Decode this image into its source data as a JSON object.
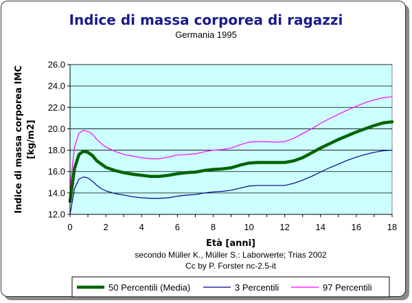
{
  "chart_data": {
    "type": "line",
    "title": "Indice di massa corporea di ragazzi",
    "subtitle": "Germania 1995",
    "xlabel": "Età [anni]",
    "ylabel_line1": "Indice di massa corporea IMC",
    "ylabel_line2": "[kg/m2]",
    "xlim": [
      0,
      18
    ],
    "ylim": [
      12.0,
      26.0
    ],
    "x_ticks": [
      0,
      2,
      4,
      6,
      8,
      10,
      12,
      14,
      16,
      18
    ],
    "x_tick_labels": [
      "0",
      "2",
      "4",
      "6",
      "8",
      "10",
      "12",
      "14",
      "16",
      "18"
    ],
    "y_ticks": [
      12,
      14,
      16,
      18,
      20,
      22,
      24,
      26
    ],
    "y_tick_labels": [
      "12.0",
      "14.0",
      "16.0",
      "18.0",
      "20.0",
      "22.0",
      "24.0",
      "26.0"
    ],
    "grid": "horizontal",
    "plot_background": "#ccffff",
    "legend_position": "bottom",
    "notes": [
      "secondo Müller K., Müller S.: Laborwerte; Trias 2002",
      "Cc by P. Forster nc-2.5-it"
    ],
    "series": [
      {
        "name": "50 Percentili (Media)",
        "color": "#006400",
        "x": [
          0,
          0.25,
          0.5,
          0.75,
          1,
          1.25,
          1.5,
          1.75,
          2,
          2.5,
          3,
          3.5,
          4,
          4.5,
          5,
          5.5,
          6,
          6.5,
          7,
          7.5,
          8,
          8.5,
          9,
          9.5,
          10,
          10.5,
          11,
          11.5,
          12,
          12.5,
          13,
          13.5,
          14,
          14.5,
          15,
          15.5,
          16,
          16.5,
          17,
          17.5,
          18
        ],
        "values": [
          13.2,
          16.3,
          17.6,
          17.9,
          17.8,
          17.5,
          17.0,
          16.7,
          16.4,
          16.1,
          15.9,
          15.75,
          15.65,
          15.55,
          15.55,
          15.65,
          15.8,
          15.9,
          15.95,
          16.1,
          16.2,
          16.25,
          16.35,
          16.6,
          16.8,
          16.85,
          16.85,
          16.85,
          16.85,
          17.0,
          17.3,
          17.75,
          18.2,
          18.6,
          19.0,
          19.35,
          19.7,
          20.0,
          20.3,
          20.55,
          20.65
        ]
      },
      {
        "name": "3 Percentili",
        "color": "#00008b",
        "x": [
          0,
          0.25,
          0.5,
          0.75,
          1,
          1.25,
          1.5,
          1.75,
          2,
          2.5,
          3,
          3.5,
          4,
          4.5,
          5,
          5.5,
          6,
          6.5,
          7,
          7.5,
          8,
          8.5,
          9,
          9.5,
          10,
          10.5,
          11,
          11.5,
          12,
          12.5,
          13,
          13.5,
          14,
          14.5,
          15,
          15.5,
          16,
          16.5,
          17,
          17.5,
          18
        ],
        "values": [
          12.0,
          14.4,
          15.3,
          15.5,
          15.4,
          15.1,
          14.7,
          14.4,
          14.2,
          13.95,
          13.8,
          13.65,
          13.55,
          13.5,
          13.5,
          13.55,
          13.7,
          13.8,
          13.85,
          14.0,
          14.1,
          14.15,
          14.25,
          14.45,
          14.65,
          14.7,
          14.7,
          14.7,
          14.7,
          14.9,
          15.2,
          15.55,
          15.95,
          16.35,
          16.7,
          17.05,
          17.35,
          17.6,
          17.8,
          17.95,
          18.0
        ]
      },
      {
        "name": "97 Percentili",
        "color": "#ff00ff",
        "x": [
          0,
          0.25,
          0.5,
          0.75,
          1,
          1.25,
          1.5,
          1.75,
          2,
          2.5,
          3,
          3.5,
          4,
          4.5,
          5,
          5.5,
          6,
          6.5,
          7,
          7.5,
          8,
          8.5,
          9,
          9.5,
          10,
          10.5,
          11,
          11.5,
          12,
          12.5,
          13,
          13.5,
          14,
          14.5,
          15,
          15.5,
          16,
          16.5,
          17,
          17.5,
          18
        ],
        "values": [
          14.5,
          18.3,
          19.6,
          19.85,
          19.75,
          19.5,
          19.0,
          18.6,
          18.3,
          17.9,
          17.6,
          17.45,
          17.3,
          17.2,
          17.2,
          17.35,
          17.55,
          17.6,
          17.65,
          17.85,
          18.0,
          18.05,
          18.2,
          18.5,
          18.75,
          18.8,
          18.8,
          18.75,
          18.8,
          19.1,
          19.55,
          20.0,
          20.5,
          20.95,
          21.35,
          21.75,
          22.1,
          22.45,
          22.7,
          22.9,
          23.0
        ]
      }
    ]
  }
}
